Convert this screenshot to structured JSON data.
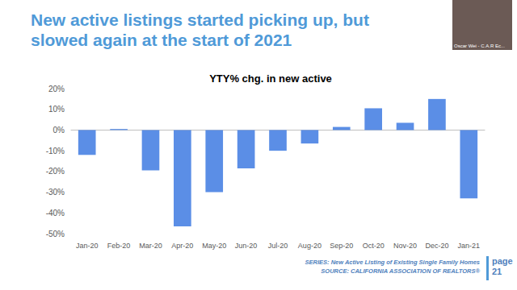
{
  "slide": {
    "heading": [
      "New active listings started picking up, but",
      "slowed again at the start of 2021"
    ],
    "footer": [
      "SERIES: New Active Listing of Existing Single Family Homes",
      "SOURCE: CALIFORNIA ASSOCIATION OF REALTORS®"
    ],
    "page": {
      "label": "page",
      "number": 21
    },
    "webcam_label": "Oscar Wei - C.A.R Ec..."
  },
  "chart_data": {
    "type": "bar",
    "title": "YTY% chg. in new active",
    "categories": [
      "Jan-20",
      "Feb-20",
      "Mar-20",
      "Apr-20",
      "May-20",
      "Jun-20",
      "Jul-20",
      "Aug-20",
      "Sep-20",
      "Oct-20",
      "Nov-20",
      "Dec-20",
      "Jan-21"
    ],
    "values": [
      -12,
      0.5,
      -19.5,
      -46.5,
      -30,
      -18.5,
      -10,
      -6.5,
      1.5,
      10.5,
      3.5,
      15,
      -33
    ],
    "color": "#5b8ee6",
    "ylim": [
      -50,
      20
    ],
    "yticks": [
      {
        "value": -50,
        "label": "-50%"
      },
      {
        "value": -40,
        "label": "-40%"
      },
      {
        "value": -30,
        "label": "-30%"
      },
      {
        "value": -20,
        "label": "-20%"
      },
      {
        "value": -10,
        "label": "-10%"
      },
      {
        "value": 0,
        "label": "0%"
      },
      {
        "value": 10,
        "label": "10%"
      },
      {
        "value": 20,
        "label": "20%"
      }
    ],
    "grid": false
  }
}
